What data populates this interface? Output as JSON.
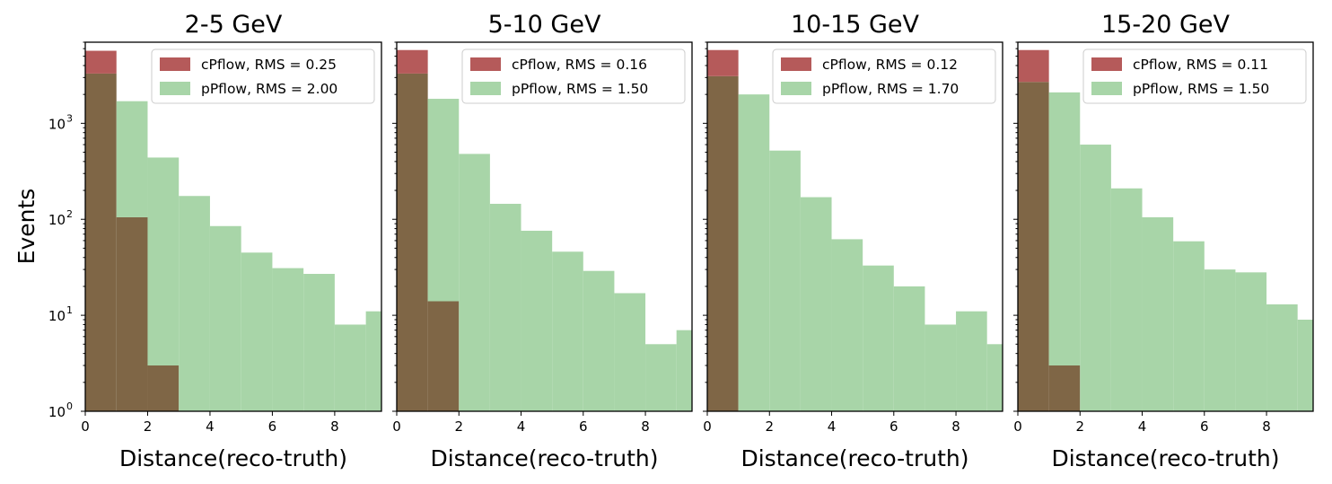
{
  "figure": {
    "ylabel": "Events"
  },
  "colors": {
    "cpflow": "#b55a5a",
    "ppflow": "#a8d5a8",
    "overlap": "#7f6646"
  },
  "chart_data": [
    {
      "type": "bar",
      "title": "2-5 GeV",
      "xlabel": "Distance(reco-truth)",
      "ylabel": "Events",
      "yscale": "log",
      "xlim": [
        0,
        9.5
      ],
      "ylim": [
        1,
        7000
      ],
      "bin_edges": [
        0,
        1,
        2,
        3,
        4,
        5,
        6,
        7,
        8,
        9,
        10
      ],
      "series": [
        {
          "name": "cPflow, RMS = 0.25",
          "values": [
            5700,
            105,
            3,
            0,
            0,
            0,
            0,
            0,
            0,
            0
          ]
        },
        {
          "name": "pPflow, RMS = 2.00",
          "values": [
            3300,
            1700,
            440,
            175,
            85,
            45,
            31,
            27,
            8,
            11
          ]
        }
      ],
      "x_ticks": [
        "0",
        "2",
        "4",
        "6",
        "8"
      ],
      "y_ticks": [
        "10",
        "10",
        "10",
        "10"
      ],
      "y_tick_exps": [
        "0",
        "1",
        "2",
        "3"
      ],
      "legend": "top-right",
      "grid": false
    },
    {
      "type": "bar",
      "title": "5-10 GeV",
      "xlabel": "Distance(reco-truth)",
      "yscale": "log",
      "xlim": [
        0,
        9.5
      ],
      "ylim": [
        1,
        7000
      ],
      "bin_edges": [
        0,
        1,
        2,
        3,
        4,
        5,
        6,
        7,
        8,
        9,
        10
      ],
      "series": [
        {
          "name": "cPflow, RMS = 0.16",
          "values": [
            5800,
            14,
            0,
            0,
            0,
            0,
            0,
            0,
            0,
            0
          ]
        },
        {
          "name": "pPflow, RMS = 1.50",
          "values": [
            3300,
            1800,
            480,
            145,
            76,
            46,
            29,
            17,
            5,
            7
          ]
        }
      ],
      "x_ticks": [
        "0",
        "2",
        "4",
        "6",
        "8"
      ],
      "legend": "top-right",
      "grid": false
    },
    {
      "type": "bar",
      "title": "10-15 GeV",
      "xlabel": "Distance(reco-truth)",
      "yscale": "log",
      "xlim": [
        0,
        9.5
      ],
      "ylim": [
        1,
        7000
      ],
      "bin_edges": [
        0,
        1,
        2,
        3,
        4,
        5,
        6,
        7,
        8,
        9,
        10
      ],
      "series": [
        {
          "name": "cPflow, RMS = 0.12",
          "values": [
            5800,
            0,
            0,
            0,
            0,
            0,
            0,
            0,
            0,
            0
          ]
        },
        {
          "name": "pPflow, RMS = 1.70",
          "values": [
            3100,
            2000,
            520,
            170,
            62,
            33,
            20,
            8,
            11,
            5
          ]
        }
      ],
      "x_ticks": [
        "0",
        "2",
        "4",
        "6",
        "8"
      ],
      "legend": "top-right",
      "grid": false
    },
    {
      "type": "bar",
      "title": "15-20 GeV",
      "xlabel": "Distance(reco-truth)",
      "yscale": "log",
      "xlim": [
        0,
        9.5
      ],
      "ylim": [
        1,
        7000
      ],
      "bin_edges": [
        0,
        1,
        2,
        3,
        4,
        5,
        6,
        7,
        8,
        9,
        10
      ],
      "series": [
        {
          "name": "cPflow, RMS = 0.11",
          "values": [
            5800,
            3,
            0,
            0,
            0,
            0,
            0,
            0,
            0,
            0
          ]
        },
        {
          "name": "pPflow, RMS = 1.50",
          "values": [
            2700,
            2100,
            600,
            210,
            105,
            59,
            30,
            28,
            13,
            9
          ]
        }
      ],
      "x_ticks": [
        "0",
        "2",
        "4",
        "6",
        "8"
      ],
      "legend": "top-right",
      "grid": false
    }
  ]
}
